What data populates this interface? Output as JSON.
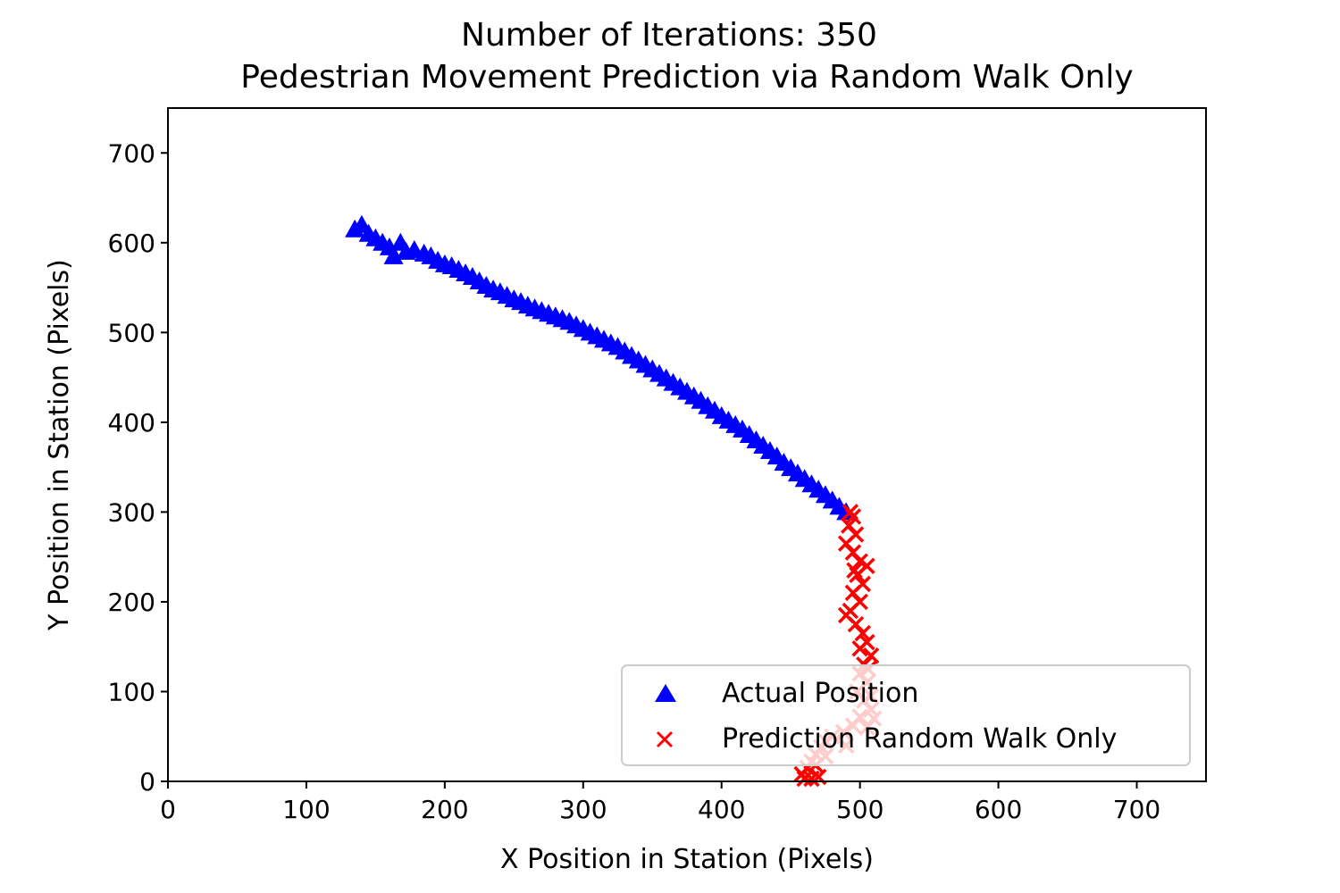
{
  "chart_data": {
    "type": "scatter",
    "title_line1": "Number of Iterations: 350",
    "title_line2": "Pedestrian Movement Prediction via Random Walk Only",
    "xlabel": "X Position in Station (Pixels)",
    "ylabel": "Y Position in Station (Pixels)",
    "xlim": [
      0,
      750
    ],
    "ylim": [
      0,
      750
    ],
    "xticks": [
      0,
      100,
      200,
      300,
      400,
      500,
      600,
      700
    ],
    "yticks": [
      0,
      100,
      200,
      300,
      400,
      500,
      600,
      700
    ],
    "grid": false,
    "legend_position": "lower-right",
    "series": [
      {
        "name": "Actual Position",
        "marker": "triangle",
        "color": "#0000ff",
        "points": [
          [
            135,
            615
          ],
          [
            140,
            620
          ],
          [
            145,
            610
          ],
          [
            150,
            605
          ],
          [
            155,
            600
          ],
          [
            160,
            595
          ],
          [
            163,
            585
          ],
          [
            168,
            600
          ],
          [
            172,
            590
          ],
          [
            178,
            592
          ],
          [
            185,
            588
          ],
          [
            190,
            585
          ],
          [
            195,
            580
          ],
          [
            200,
            576
          ],
          [
            205,
            574
          ],
          [
            210,
            570
          ],
          [
            215,
            566
          ],
          [
            220,
            562
          ],
          [
            225,
            557
          ],
          [
            230,
            552
          ],
          [
            235,
            548
          ],
          [
            240,
            545
          ],
          [
            245,
            541
          ],
          [
            250,
            537
          ],
          [
            255,
            534
          ],
          [
            260,
            530
          ],
          [
            265,
            527
          ],
          [
            270,
            524
          ],
          [
            275,
            521
          ],
          [
            280,
            518
          ],
          [
            285,
            515
          ],
          [
            290,
            512
          ],
          [
            295,
            508
          ],
          [
            300,
            504
          ],
          [
            305,
            500
          ],
          [
            310,
            496
          ],
          [
            315,
            492
          ],
          [
            320,
            488
          ],
          [
            325,
            484
          ],
          [
            330,
            479
          ],
          [
            335,
            474
          ],
          [
            340,
            469
          ],
          [
            345,
            464
          ],
          [
            350,
            459
          ],
          [
            355,
            454
          ],
          [
            360,
            449
          ],
          [
            365,
            444
          ],
          [
            370,
            439
          ],
          [
            375,
            434
          ],
          [
            380,
            429
          ],
          [
            385,
            424
          ],
          [
            390,
            418
          ],
          [
            395,
            413
          ],
          [
            400,
            407
          ],
          [
            405,
            402
          ],
          [
            410,
            397
          ],
          [
            415,
            392
          ],
          [
            420,
            386
          ],
          [
            425,
            380
          ],
          [
            430,
            374
          ],
          [
            435,
            368
          ],
          [
            440,
            362
          ],
          [
            445,
            355
          ],
          [
            450,
            349
          ],
          [
            455,
            343
          ],
          [
            460,
            337
          ],
          [
            465,
            331
          ],
          [
            470,
            325
          ],
          [
            475,
            319
          ],
          [
            480,
            313
          ],
          [
            485,
            306
          ],
          [
            490,
            300
          ]
        ]
      },
      {
        "name": "Prediction Random Walk Only",
        "marker": "x",
        "color": "#ff0000",
        "points": [
          [
            495,
            295
          ],
          [
            492,
            285
          ],
          [
            497,
            275
          ],
          [
            490,
            265
          ],
          [
            495,
            255
          ],
          [
            500,
            245
          ],
          [
            505,
            240
          ],
          [
            498,
            230
          ],
          [
            502,
            220
          ],
          [
            495,
            210
          ],
          [
            500,
            200
          ],
          [
            493,
            190
          ],
          [
            490,
            185
          ],
          [
            497,
            175
          ],
          [
            502,
            165
          ],
          [
            505,
            155
          ],
          [
            500,
            148
          ],
          [
            508,
            140
          ],
          [
            503,
            130
          ],
          [
            500,
            120
          ],
          [
            505,
            110
          ],
          [
            498,
            100
          ],
          [
            503,
            90
          ],
          [
            508,
            80
          ],
          [
            500,
            72
          ],
          [
            510,
            70
          ],
          [
            495,
            62
          ],
          [
            488,
            55
          ],
          [
            480,
            50
          ],
          [
            475,
            45
          ],
          [
            472,
            38
          ],
          [
            468,
            30
          ],
          [
            465,
            22
          ],
          [
            462,
            15
          ],
          [
            458,
            8
          ],
          [
            460,
            3
          ],
          [
            465,
            3
          ],
          [
            470,
            5
          ],
          [
            468,
            18
          ],
          [
            475,
            28
          ],
          [
            490,
            40
          ],
          [
            505,
            60
          ],
          [
            508,
            95
          ],
          [
            506,
            125
          ],
          [
            496,
            235
          ],
          [
            493,
            300
          ]
        ]
      }
    ]
  }
}
